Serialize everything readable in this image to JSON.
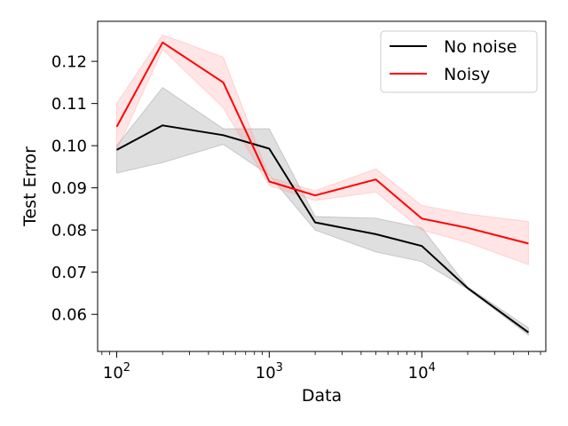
{
  "chart_data": {
    "type": "line",
    "title": "",
    "xlabel": "Data",
    "ylabel": "Test Error",
    "xscale": "log",
    "xlim": [
      75,
      65000
    ],
    "ylim": [
      0.0512,
      0.1295
    ],
    "x_ticks": [
      {
        "value": 100,
        "base": "10",
        "exp": "2"
      },
      {
        "value": 1000,
        "base": "10",
        "exp": "3"
      },
      {
        "value": 10000,
        "base": "10",
        "exp": "4"
      }
    ],
    "y_ticks": [
      "0.06",
      "0.07",
      "0.08",
      "0.09",
      "0.10",
      "0.11",
      "0.12"
    ],
    "legend_position": "top-right",
    "series": [
      {
        "name": "No noise",
        "color": "#000000",
        "band_color": "#808080",
        "x": [
          100,
          200,
          500,
          1000,
          2000,
          5000,
          10000,
          20000,
          50000
        ],
        "values": [
          0.099,
          0.1048,
          0.1025,
          0.0993,
          0.0818,
          0.079,
          0.0762,
          0.0662,
          0.0557
        ],
        "lower": [
          0.0935,
          0.096,
          0.1003,
          0.093,
          0.08,
          0.0748,
          0.0725,
          0.066,
          0.0551
        ],
        "upper": [
          0.1,
          0.1138,
          0.104,
          0.104,
          0.0832,
          0.0828,
          0.0805,
          0.0665,
          0.0568
        ]
      },
      {
        "name": "Noisy",
        "color": "#ff0000",
        "band_color": "#ff9999",
        "x": [
          100,
          200,
          500,
          1000,
          2000,
          5000,
          10000,
          20000,
          50000
        ],
        "values": [
          0.1045,
          0.1245,
          0.115,
          0.0915,
          0.0882,
          0.092,
          0.0827,
          0.0805,
          0.0768
        ],
        "lower": [
          0.099,
          0.1228,
          0.109,
          0.0905,
          0.087,
          0.089,
          0.08,
          0.077,
          0.0718
        ],
        "upper": [
          0.11,
          0.1263,
          0.121,
          0.0925,
          0.0893,
          0.0945,
          0.0858,
          0.0838,
          0.082
        ]
      }
    ]
  }
}
